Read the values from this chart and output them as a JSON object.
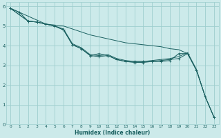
{
  "xlabel": "Humidex (Indice chaleur)",
  "bg_color": "#cceaea",
  "grid_color": "#9ecece",
  "line_color": "#1a6060",
  "xlim": [
    -0.5,
    23.5
  ],
  "ylim": [
    0,
    6.2
  ],
  "xticks": [
    0,
    1,
    2,
    3,
    4,
    5,
    6,
    7,
    8,
    9,
    10,
    11,
    12,
    13,
    14,
    15,
    16,
    17,
    18,
    19,
    20,
    21,
    22,
    23
  ],
  "yticks": [
    0,
    1,
    2,
    3,
    4,
    5,
    6
  ],
  "series": [
    {
      "x": [
        0,
        1,
        2,
        3,
        4,
        5,
        6,
        7,
        8,
        9,
        10,
        11,
        12,
        13,
        14,
        15,
        16,
        17,
        18,
        19,
        20
      ],
      "y": [
        5.9,
        5.7,
        5.25,
        5.2,
        5.1,
        5.0,
        4.8,
        4.05,
        3.85,
        3.5,
        3.6,
        3.5,
        3.3,
        3.2,
        3.2,
        3.2,
        3.2,
        3.2,
        3.25,
        3.6,
        3.6
      ],
      "marker": true
    },
    {
      "x": [
        0,
        2,
        3,
        4,
        5,
        6,
        7,
        8,
        9,
        10,
        11,
        12,
        13,
        14,
        15,
        16,
        17,
        18,
        19,
        20,
        21,
        22,
        23
      ],
      "y": [
        5.9,
        5.25,
        5.2,
        5.1,
        5.0,
        4.8,
        4.05,
        3.85,
        3.5,
        3.45,
        3.5,
        3.3,
        3.2,
        3.15,
        3.15,
        3.2,
        3.25,
        3.3,
        3.35,
        3.6,
        2.75,
        1.4,
        0.35
      ],
      "marker": true
    },
    {
      "x": [
        0,
        2,
        3,
        4,
        5,
        6,
        7,
        8,
        9,
        10,
        11,
        12,
        13,
        14,
        15,
        16,
        17,
        18,
        19,
        20,
        21,
        22,
        23
      ],
      "y": [
        5.9,
        5.25,
        5.2,
        5.1,
        5.0,
        4.85,
        4.1,
        3.9,
        3.55,
        3.5,
        3.55,
        3.35,
        3.25,
        3.2,
        3.2,
        3.25,
        3.3,
        3.35,
        3.45,
        3.65,
        2.8,
        1.4,
        0.35
      ],
      "marker": false
    },
    {
      "x": [
        0,
        4,
        5,
        6,
        7,
        8,
        9,
        10,
        11,
        12,
        13,
        14,
        15,
        16,
        17,
        18,
        19,
        20,
        21,
        22,
        23
      ],
      "y": [
        5.9,
        5.1,
        5.05,
        5.0,
        4.85,
        4.7,
        4.55,
        4.45,
        4.35,
        4.25,
        4.15,
        4.1,
        4.05,
        4.0,
        3.95,
        3.85,
        3.8,
        3.6,
        2.75,
        1.4,
        0.35
      ],
      "marker": false
    }
  ]
}
